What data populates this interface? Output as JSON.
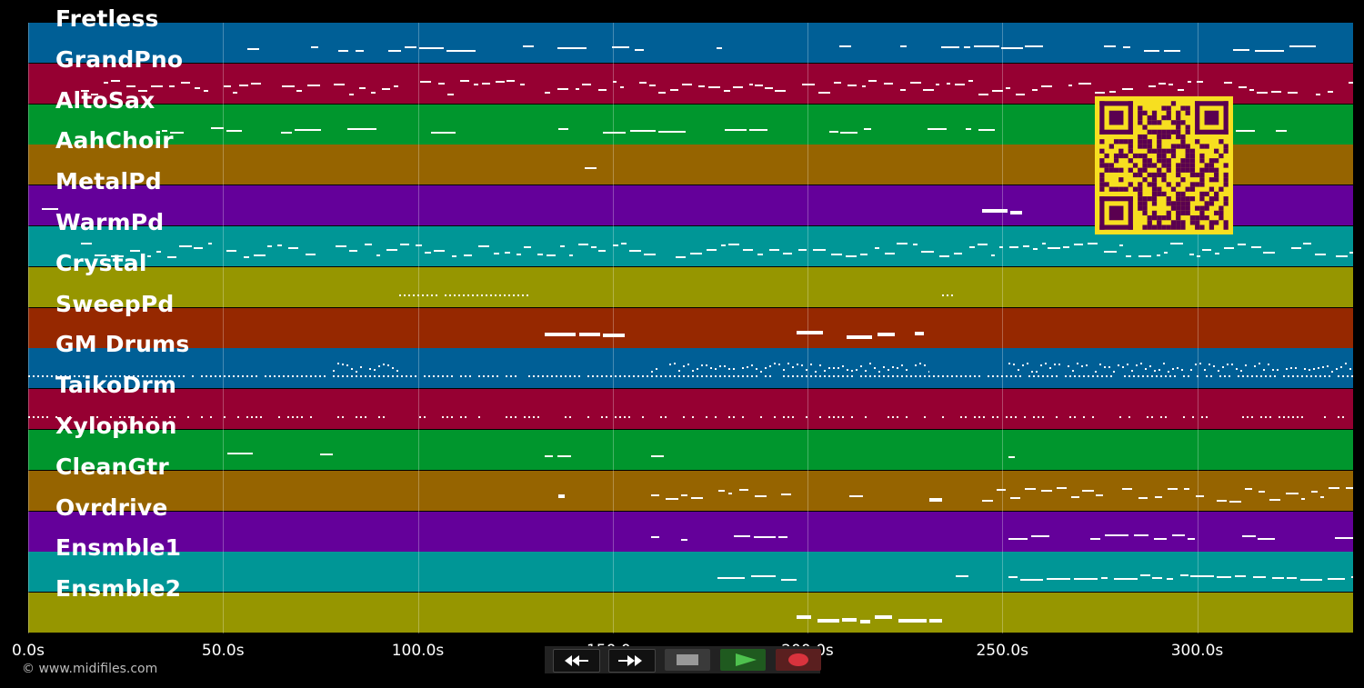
{
  "timeline": {
    "ticks": [
      "0.0s",
      "50.0s",
      "100.0s",
      "150.0s",
      "200.0s",
      "250.0s",
      "300.0s"
    ],
    "tick_values": [
      0,
      50,
      100,
      150,
      200,
      250,
      300
    ],
    "duration_s": 340
  },
  "tracks": [
    {
      "name": "Fretless",
      "color": "#005f96"
    },
    {
      "name": "GrandPno",
      "color": "#960032"
    },
    {
      "name": "AltoSax",
      "color": "#00962d"
    },
    {
      "name": "AahChoir",
      "color": "#966400"
    },
    {
      "name": "MetalPd",
      "color": "#64009a"
    },
    {
      "name": "WarmPd",
      "color": "#009696"
    },
    {
      "name": "Crystal",
      "color": "#969600"
    },
    {
      "name": "SweepPd",
      "color": "#962800"
    },
    {
      "name": "GM Drums",
      "color": "#005f96"
    },
    {
      "name": "TaikoDrm",
      "color": "#960032"
    },
    {
      "name": "Xylophon",
      "color": "#00962d"
    },
    {
      "name": "CleanGtr",
      "color": "#966400"
    },
    {
      "name": "Ovrdrive",
      "color": "#64009a"
    },
    {
      "name": "Ensmble1",
      "color": "#009696"
    },
    {
      "name": "Ensmble2",
      "color": "#969600"
    }
  ],
  "footer": {
    "copyright": "© www.midifiles.com"
  },
  "transport": {
    "buttons": [
      {
        "name": "rewind-button",
        "icon": "rewind-icon"
      },
      {
        "name": "fast-forward-button",
        "icon": "fast-forward-icon"
      },
      {
        "name": "stop-button",
        "icon": "stop-icon"
      },
      {
        "name": "play-button",
        "icon": "play-icon"
      },
      {
        "name": "record-button",
        "icon": "record-icon"
      }
    ]
  },
  "qr_code": {
    "icon": "qr-code-icon",
    "color": "#f7df20",
    "ink": "#5a0050"
  }
}
